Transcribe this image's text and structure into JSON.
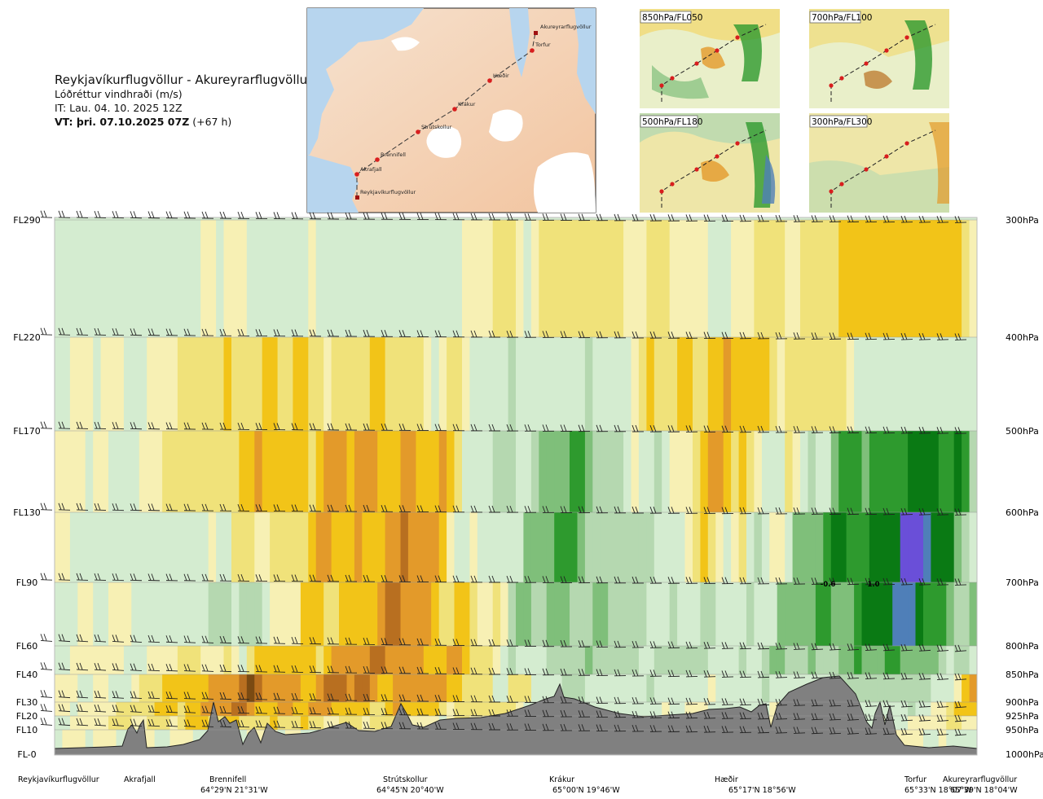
{
  "header": {
    "route_title": "Reykjavíkurflugvöllur - Akureyrarflugvöllur",
    "subtitle": "Lóðréttur vindhraði (m/s)",
    "issue_time": "IT: Lau. 04. 10. 2025 12Z",
    "valid_time_bold": "VT: þri. 07.10.2025 07Z",
    "valid_time_offset": "(+67 h)"
  },
  "route_map": {
    "waypoints": [
      {
        "name": "Reykjavíkurflugvöllur"
      },
      {
        "name": "Akrafjall"
      },
      {
        "name": "Brennifell"
      },
      {
        "name": "Strútskollur"
      },
      {
        "name": "Krákur"
      },
      {
        "name": "Hæðir"
      },
      {
        "name": "Torfur"
      },
      {
        "name": "Akureyrarflugvöllur"
      }
    ]
  },
  "mini_maps": [
    {
      "label": "850hPa/FL050"
    },
    {
      "label": "700hPa/FL100"
    },
    {
      "label": "500hPa/FL180"
    },
    {
      "label": "300hPa/FL300"
    }
  ],
  "colors": {
    "strong_down": "#7a4a12",
    "down_3": "#b86f20",
    "down_2": "#e39a2a",
    "down_1": "#f2c418",
    "down_0": "#f0e27a",
    "weak_down": "#f7f0b4",
    "neutral": "#ffffff",
    "weak_up": "#d4ecd0",
    "up_1": "#b5d8b0",
    "up_2": "#7fbf7a",
    "up_3": "#2e9a2e",
    "up_4": "#0a7a14",
    "up_5": "#4f7fb8",
    "up_6": "#6a4fd8",
    "terrain": "#808080"
  },
  "chart_data": {
    "type": "heatmap",
    "title": "Lóðréttur vindhraði (m/s)",
    "y_levels_left": [
      "FL290",
      "FL220",
      "FL170",
      "FL130",
      "FL90",
      "FL60",
      "FL40",
      "FL30",
      "FL20",
      "FL10",
      "FL-0"
    ],
    "y_levels_right": [
      "300hPa",
      "400hPa",
      "500hPa",
      "600hPa",
      "700hPa",
      "800hPa",
      "850hPa",
      "900hPa",
      "925hPa",
      "950hPa",
      "1000hPa"
    ],
    "x_stations": [
      {
        "name": "Reykjavíkurflugvöllur",
        "coord": ""
      },
      {
        "name": "Akrafjall",
        "coord": ""
      },
      {
        "name": "Brennifell",
        "coord": "64°29'N 21°31'W"
      },
      {
        "name": "Strútskollur",
        "coord": "64°45'N 20°40'W"
      },
      {
        "name": "Krákur",
        "coord": "65°00'N 19°46'W"
      },
      {
        "name": "Hæðir",
        "coord": "65°17'N 18°56'W"
      },
      {
        "name": "Torfur",
        "coord": "65°33'N 18°07'W"
      },
      {
        "name": "Akureyrarflugvöllur",
        "coord": "65°39'N 18°04'W"
      }
    ],
    "annotations": [
      "-0.6",
      "1.0"
    ],
    "columns": [
      {
        "station": "Reykjavíkurflugvöllur",
        "values_by_level": [
          0,
          0,
          0,
          0,
          0,
          0,
          0,
          0,
          0,
          0,
          0
        ]
      },
      {
        "station": "Akrafjall",
        "values_by_level": [
          0.1,
          0.1,
          -0.1,
          0.1,
          0.1,
          -0.1,
          0.1,
          -0.1,
          -0.1,
          0,
          0
        ]
      },
      {
        "station": "Brennifell",
        "values_by_level": [
          0.1,
          -0.1,
          -0.2,
          -0.1,
          0.1,
          0.3,
          -0.4,
          -0.5,
          -0.3,
          0,
          0
        ]
      },
      {
        "station": "Strútskollur",
        "values_by_level": [
          0.1,
          0.1,
          -0.3,
          -0.4,
          -0.4,
          -0.4,
          -0.5,
          -0.3,
          -0.1,
          0,
          0
        ]
      },
      {
        "station": "Krákur",
        "values_by_level": [
          -0.1,
          -0.1,
          0.4,
          0.5,
          0.4,
          0.3,
          0.2,
          0.1,
          0,
          0,
          0
        ]
      },
      {
        "station": "Hæðir",
        "values_by_level": [
          0.2,
          -0.2,
          -0.3,
          -0.2,
          -0.1,
          0.2,
          0.1,
          0,
          0,
          0,
          0
        ]
      },
      {
        "station": "Torfur",
        "values_by_level": [
          -0.2,
          -0.3,
          0.5,
          0.9,
          1.0,
          0.6,
          0.3,
          0.2,
          0,
          0,
          0
        ]
      },
      {
        "station": "Akureyrarflugvöllur",
        "values_by_level": [
          0.2,
          -0.3,
          0.3,
          0.4,
          0.2,
          0.1,
          -0.2,
          -0.3,
          -0.1,
          0,
          0
        ]
      }
    ],
    "legend": "none",
    "grid": true
  }
}
